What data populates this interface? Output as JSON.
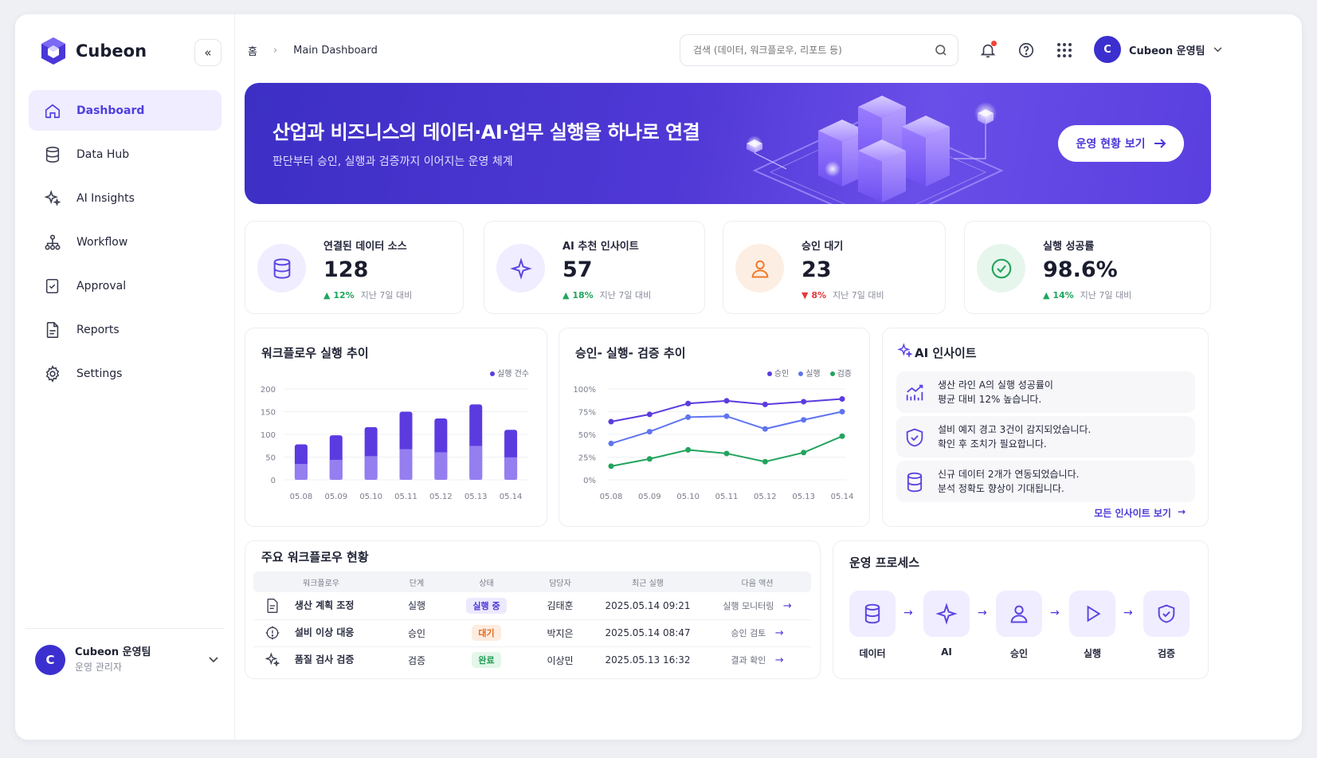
{
  "app": {
    "brand": "Cubeon"
  },
  "sidebar": {
    "items": [
      {
        "label": "Dashboard",
        "icon": "home-icon",
        "active": true
      },
      {
        "label": "Data Hub",
        "icon": "database-icon"
      },
      {
        "label": "AI Insights",
        "icon": "sparkle-icon"
      },
      {
        "label": "Workflow",
        "icon": "workflow-icon"
      },
      {
        "label": "Approval",
        "icon": "approval-icon"
      },
      {
        "label": "Reports",
        "icon": "report-icon"
      },
      {
        "label": "Settings",
        "icon": "gear-icon"
      }
    ],
    "user": {
      "initial": "C",
      "name": "Cubeon 운영팀",
      "role": "운영 관리자"
    }
  },
  "header": {
    "breadcrumb": {
      "home": "홈",
      "current": "Main Dashboard"
    },
    "search_placeholder": "검색 (데이터, 워크플로우, 리포트 등)",
    "user": {
      "initial": "C",
      "name": "Cubeon 운영팀"
    }
  },
  "banner": {
    "title": "산업과 비즈니스의 데이터·AI·업무 실행을 하나로 연결",
    "subtitle": "판단부터 승인, 실행과 검증까지 이어지는 운영 체계",
    "cta": "운영 현황 보기"
  },
  "stats": [
    {
      "label": "연결된 데이터 소스",
      "value": "128",
      "delta": "12%",
      "dir": "up",
      "note": "지난 7일 대비",
      "color": "#5b46e0",
      "bg": "#efedff"
    },
    {
      "label": "AI 추천 인사이트",
      "value": "57",
      "delta": "18%",
      "dir": "up",
      "note": "지난 7일 대비",
      "color": "#5b46e0",
      "bg": "#efedff"
    },
    {
      "label": "승인 대기",
      "value": "23",
      "delta": "8%",
      "dir": "down",
      "note": "지난 7일 대비",
      "color": "#ef7a2c",
      "bg": "#fdeee3"
    },
    {
      "label": "실행 성공률",
      "value": "98.6%",
      "delta": "14%",
      "dir": "up",
      "note": "지난 7일 대비",
      "color": "#22a45d",
      "bg": "#e6f6ec"
    }
  ],
  "chart_data": [
    {
      "type": "bar",
      "title": "워크플로우 실행 추이",
      "categories": [
        "05.08",
        "05.09",
        "05.10",
        "05.11",
        "05.12",
        "05.13",
        "05.14"
      ],
      "series": [
        {
          "name": "실행 건수",
          "values": [
            78,
            98,
            116,
            150,
            135,
            166,
            110
          ]
        }
      ],
      "ylim": [
        0,
        200
      ],
      "yticks": [
        "200",
        "150",
        "100",
        "50",
        "0"
      ],
      "grid": true,
      "legend": "top-right",
      "color": "#5b3be0"
    },
    {
      "type": "line",
      "title": "승인- 실행- 검증 추이",
      "categories": [
        "05.08",
        "05.09",
        "05.10",
        "05.11",
        "05.12",
        "05.13",
        "05.14"
      ],
      "series": [
        {
          "name": "승인",
          "values": [
            64,
            72,
            84,
            87,
            83,
            86,
            89
          ],
          "color": "#5b3be0"
        },
        {
          "name": "실행",
          "values": [
            40,
            53,
            69,
            70,
            56,
            66,
            75
          ],
          "color": "#5f74f0"
        },
        {
          "name": "검증",
          "values": [
            15,
            23,
            33,
            29,
            20,
            30,
            48
          ],
          "color": "#22a45d"
        }
      ],
      "ylim": [
        0,
        100
      ],
      "yticks": [
        "100%",
        "75%",
        "50%",
        "25%",
        "0%"
      ],
      "grid": true,
      "legend": "top-right"
    }
  ],
  "insights": {
    "title": "AI 인사이트",
    "items": [
      {
        "line1": "생산 라인 A의 실행 성공률이",
        "line2": "평균 대비 12% 높습니다.",
        "icon": "trend-chart-icon"
      },
      {
        "line1": "설비 예지 경고 3건이 감지되었습니다.",
        "line2": "확인 후 조치가 필요합니다.",
        "icon": "shield-check-icon"
      },
      {
        "line1": "신규 데이터 2개가 연동되었습니다.",
        "line2": "분석 정확도 향상이 기대됩니다.",
        "icon": "database-icon"
      }
    ],
    "link": "모든 인사이트 보기"
  },
  "workflows": {
    "title": "주요 워크플로우 현황",
    "columns": [
      "워크플로우",
      "단계",
      "상태",
      "담당자",
      "최근 실행",
      "다음 액션"
    ],
    "rows": [
      {
        "name": "생산 계획 조정",
        "stage": "실행",
        "status": "실행 중",
        "status_type": "run",
        "owner": "김태훈",
        "last": "2025.05.14 09:21",
        "next": "실행 모니터링",
        "icon": "document-icon"
      },
      {
        "name": "설비 이상 대응",
        "stage": "승인",
        "status": "대기",
        "status_type": "wait",
        "owner": "박지은",
        "last": "2025.05.14 08:47",
        "next": "승인 검토",
        "icon": "settings-alert-icon"
      },
      {
        "name": "품질 검사 검증",
        "stage": "검증",
        "status": "완료",
        "status_type": "done",
        "owner": "이상민",
        "last": "2025.05.13 16:32",
        "next": "결과 확인",
        "icon": "sparkle-icon"
      }
    ]
  },
  "process": {
    "title": "운영 프로세스",
    "steps": [
      {
        "label": "데이터",
        "icon": "database-icon"
      },
      {
        "label": "AI",
        "icon": "sparkle-icon"
      },
      {
        "label": "승인",
        "icon": "user-icon"
      },
      {
        "label": "실행",
        "icon": "play-icon"
      },
      {
        "label": "검증",
        "icon": "shield-check-icon"
      }
    ]
  }
}
